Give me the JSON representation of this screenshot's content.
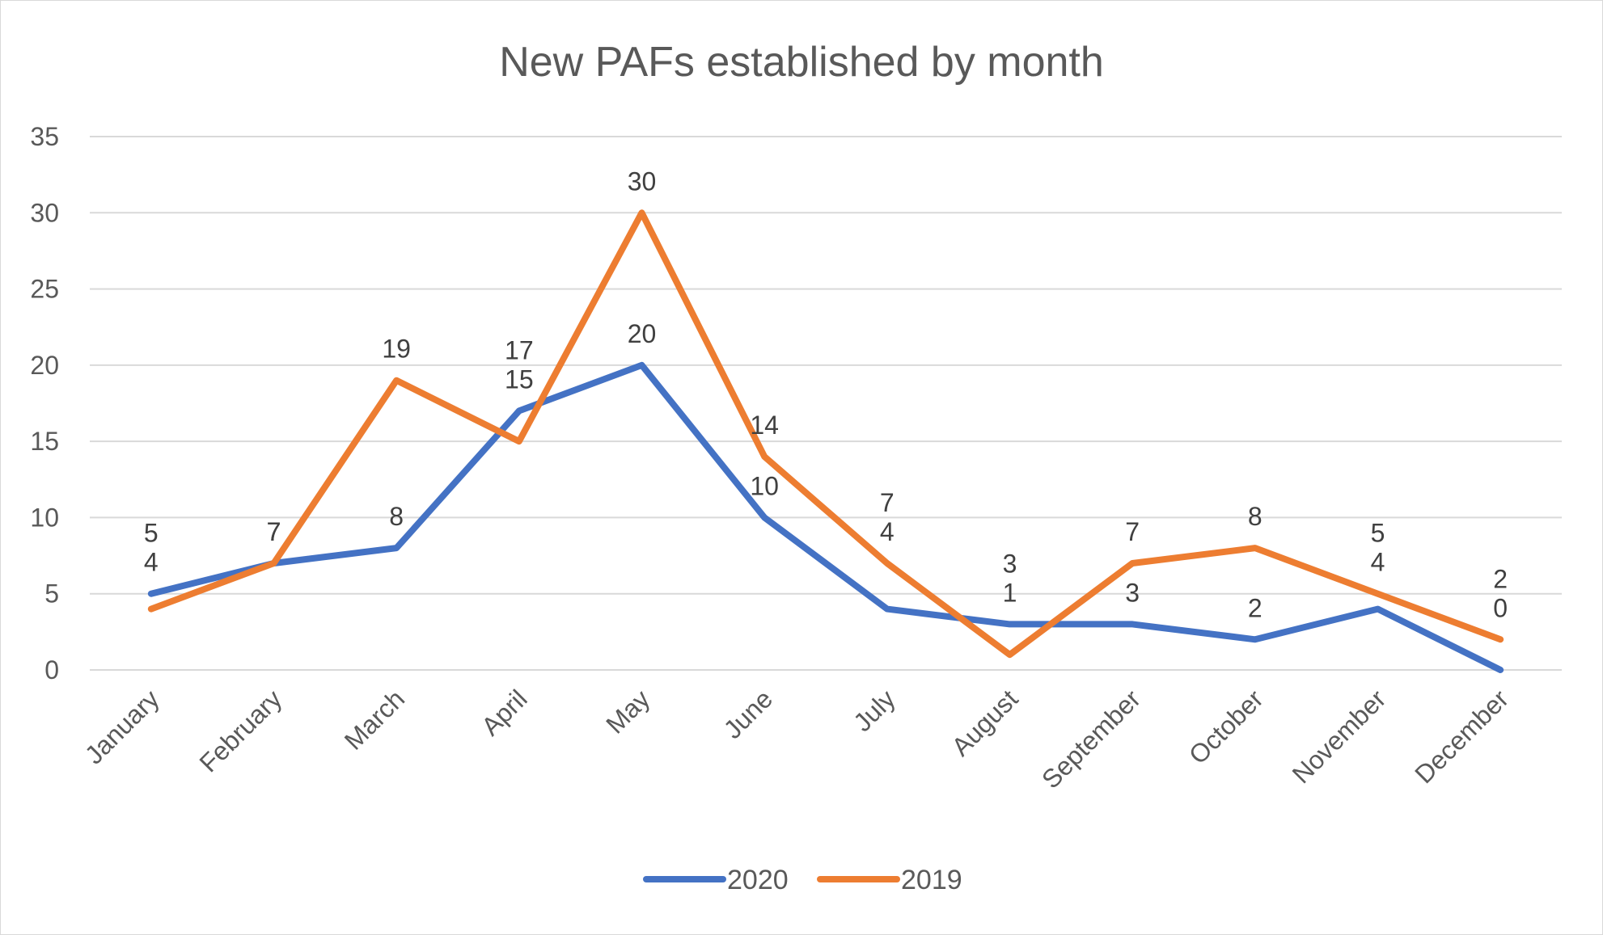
{
  "chart_data": {
    "type": "line",
    "title": "New PAFs established by month",
    "xlabel": "",
    "ylabel": "",
    "categories": [
      "January",
      "February",
      "March",
      "April",
      "May",
      "June",
      "July",
      "August",
      "September",
      "October",
      "November",
      "December"
    ],
    "series": [
      {
        "name": "2020",
        "values": [
          5,
          7,
          8,
          17,
          20,
          10,
          4,
          3,
          3,
          2,
          4,
          0
        ],
        "color": "#4472C4"
      },
      {
        "name": "2019",
        "values": [
          4,
          7,
          19,
          15,
          30,
          14,
          7,
          1,
          7,
          8,
          5,
          2
        ],
        "color": "#ED7D31"
      }
    ],
    "ylim": [
      0,
      35
    ],
    "yticks": [
      0,
      5,
      10,
      15,
      20,
      25,
      30,
      35
    ],
    "grid": true,
    "legend": "bottom",
    "data_labels": true
  }
}
